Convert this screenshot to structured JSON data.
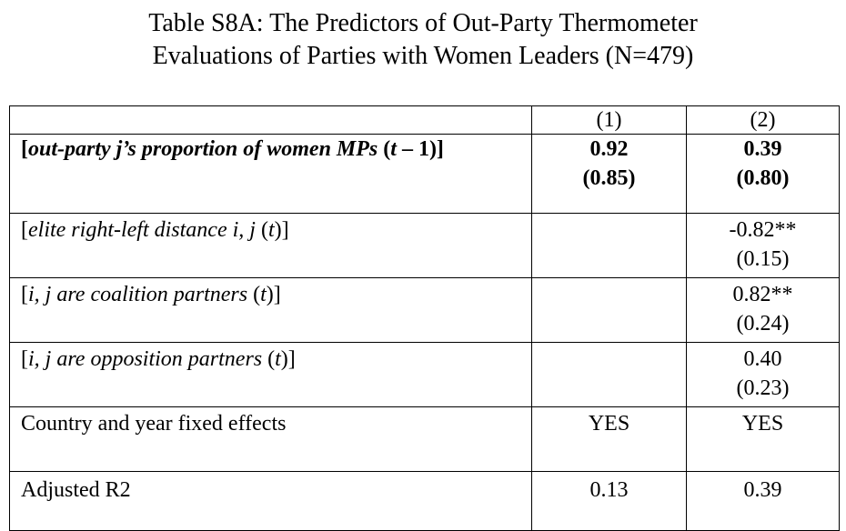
{
  "title": {
    "line1": "Table S8A: The Predictors of Out-Party Thermometer",
    "line2": "Evaluations of Parties with Women Leaders (N=479)"
  },
  "table": {
    "columns": [
      "",
      "(1)",
      "(2)"
    ],
    "rows": [
      {
        "label_open": "[",
        "label_italic": "out-party j’s proportion of women MPs",
        "label_mid": " (",
        "label_italic2": "t",
        "label_close": " – 1)]",
        "col1": "0.92",
        "col1_se": "(0.85)",
        "col2": "0.39",
        "col2_se": "(0.80)"
      },
      {
        "label_open": "[",
        "label_italic": "elite right-left distance i, j",
        "label_mid": " (",
        "label_italic2": "t",
        "label_close": ")]",
        "col1": "",
        "col1_se": "",
        "col2": "-0.82**",
        "col2_se": "(0.15)"
      },
      {
        "label_open": "[",
        "label_italic": "i, j are coalition partners",
        "label_mid": " (",
        "label_italic2": "t",
        "label_close": ")]",
        "col1": "",
        "col1_se": "",
        "col2": "0.82**",
        "col2_se": "(0.24)"
      },
      {
        "label_open": "[",
        "label_italic": "i, j are opposition partners",
        "label_mid": " (",
        "label_italic2": "t",
        "label_close": ")]",
        "col1": "",
        "col1_se": "",
        "col2": "0.40",
        "col2_se": "(0.23)"
      },
      {
        "label": "Country and year fixed effects",
        "col1": "YES",
        "col2": "YES"
      },
      {
        "label": "Adjusted R2",
        "col1": "0.13",
        "col2": "0.39"
      }
    ]
  }
}
